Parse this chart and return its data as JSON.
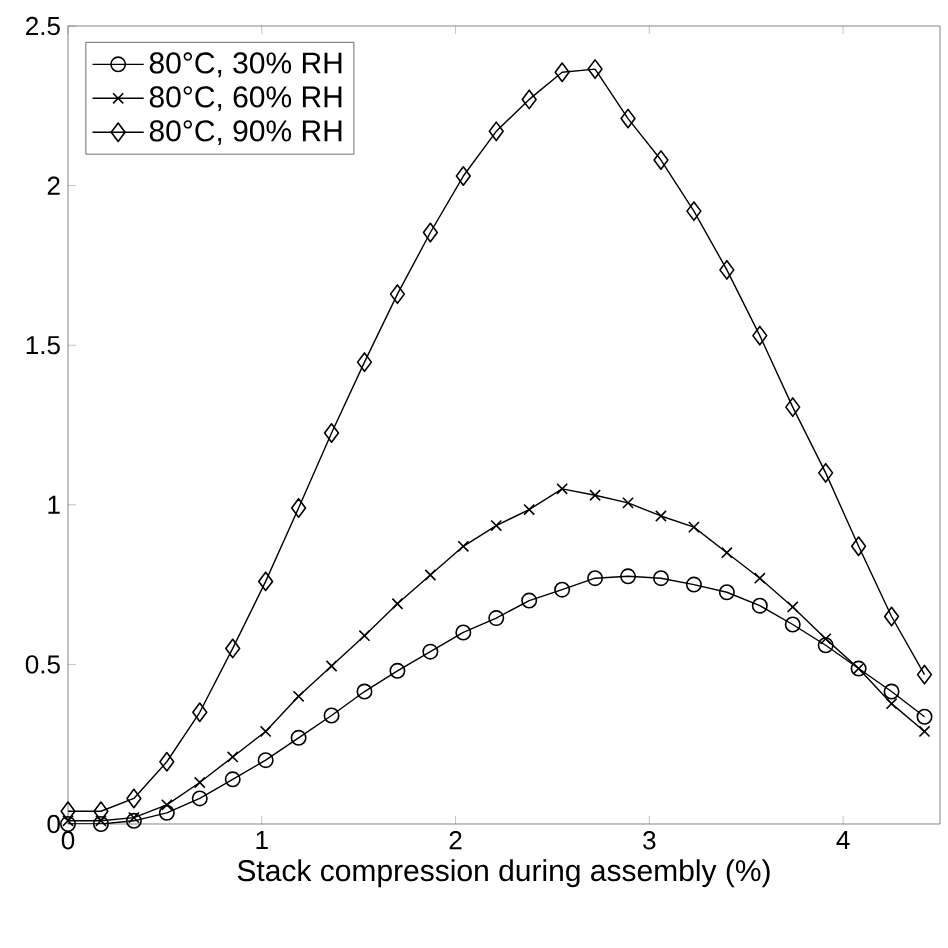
{
  "chart_data": {
    "type": "line",
    "xlabel": "Stack compression during assembly (%)",
    "x": [
      0,
      0.17,
      0.34,
      0.51,
      0.68,
      0.85,
      1.02,
      1.19,
      1.36,
      1.53,
      1.7,
      1.87,
      2.04,
      2.21,
      2.38,
      2.55,
      2.72,
      2.89,
      3.06,
      3.23,
      3.4,
      3.57,
      3.74,
      3.91,
      4.08,
      4.25,
      4.42
    ],
    "series": [
      {
        "name": "80°C, 30% RH",
        "color": "#000000",
        "marker": "circle",
        "values": [
          0.0,
          0.0,
          0.01,
          0.035,
          0.08,
          0.14,
          0.2,
          0.27,
          0.34,
          0.415,
          0.48,
          0.54,
          0.6,
          0.645,
          0.7,
          0.734,
          0.77,
          0.776,
          0.77,
          0.75,
          0.726,
          0.684,
          0.625,
          0.56,
          0.487,
          0.415,
          0.336
        ]
      },
      {
        "name": "80°C, 60% RH",
        "color": "#000000",
        "marker": "cross",
        "values": [
          0.01,
          0.01,
          0.02,
          0.06,
          0.13,
          0.21,
          0.29,
          0.4,
          0.495,
          0.59,
          0.69,
          0.78,
          0.87,
          0.935,
          0.985,
          1.05,
          1.03,
          1.006,
          0.965,
          0.93,
          0.85,
          0.77,
          0.68,
          0.58,
          0.487,
          0.377,
          0.29
        ]
      },
      {
        "name": "80°C, 90% RH",
        "color": "#000000",
        "marker": "diamond",
        "values": [
          0.04,
          0.04,
          0.08,
          0.195,
          0.35,
          0.55,
          0.76,
          0.99,
          1.225,
          1.447,
          1.66,
          1.853,
          2.03,
          2.17,
          2.27,
          2.355,
          2.365,
          2.21,
          2.08,
          1.92,
          1.736,
          1.53,
          1.306,
          1.1,
          0.87,
          0.65,
          0.468
        ]
      }
    ],
    "xlim": [
      0,
      4.5
    ],
    "xticks": [
      0,
      1,
      2,
      3,
      4
    ],
    "ylim": [
      0,
      2.5
    ],
    "yticks": [
      0,
      0.5,
      1,
      1.5,
      2,
      2.5
    ],
    "legend": "top left",
    "grid": false,
    "line_style": "solid"
  }
}
